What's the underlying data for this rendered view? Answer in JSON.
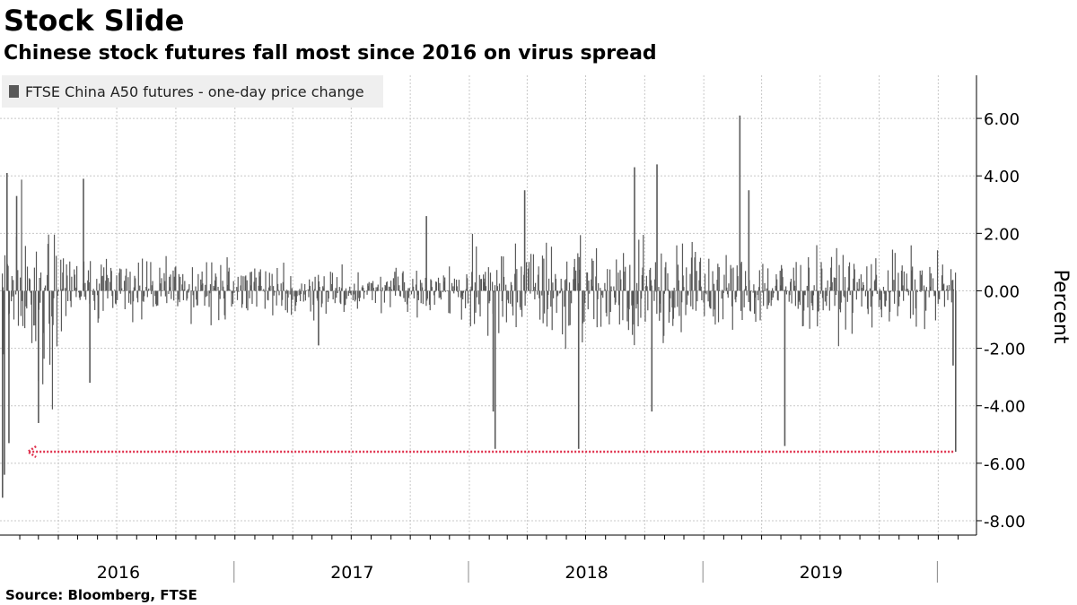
{
  "chart_data": {
    "type": "bar",
    "title": "Stock Slide",
    "subtitle": "Chinese stock futures fall most since 2016 on virus spread",
    "ylabel": "Percent",
    "ylim": [
      -8.5,
      7.5
    ],
    "yticks": [
      6,
      4,
      2,
      0,
      -2,
      -4,
      -6,
      -8
    ],
    "ytick_labels": [
      "6.00",
      "4.00",
      "2.00",
      "0.00",
      "-2.00",
      "-4.00",
      "-6.00",
      "-8.00"
    ],
    "x_range": [
      "2016-01-04",
      "2020-01-27"
    ],
    "x_categories": [
      "2016",
      "2017",
      "2018",
      "2019"
    ],
    "grid": true,
    "legend_position": "top-left",
    "series": [
      {
        "name": "FTSE China A50 futures - one-day price change",
        "color": "#595959",
        "highlighted_points": [
          {
            "date": "2016-01-04",
            "value": -7.2
          },
          {
            "date": "2016-01-07",
            "value": -6.4
          },
          {
            "date": "2016-01-11",
            "value": 4.1
          },
          {
            "date": "2016-01-14",
            "value": -5.3
          },
          {
            "date": "2016-01-26",
            "value": 3.3
          },
          {
            "date": "2016-02-29",
            "value": -4.6
          },
          {
            "date": "2016-05-09",
            "value": 3.9
          },
          {
            "date": "2016-05-19",
            "value": -3.2
          },
          {
            "date": "2017-05-10",
            "value": -1.9
          },
          {
            "date": "2017-10-25",
            "value": 2.6
          },
          {
            "date": "2018-02-06",
            "value": -4.2
          },
          {
            "date": "2018-02-09",
            "value": -5.5
          },
          {
            "date": "2018-03-27",
            "value": 3.5
          },
          {
            "date": "2018-06-19",
            "value": -5.5
          },
          {
            "date": "2018-09-14",
            "value": 4.3
          },
          {
            "date": "2018-10-11",
            "value": -4.2
          },
          {
            "date": "2018-10-19",
            "value": 4.4
          },
          {
            "date": "2019-02-25",
            "value": 6.1
          },
          {
            "date": "2019-05-06",
            "value": -5.4
          },
          {
            "date": "2019-03-11",
            "value": 3.5
          },
          {
            "date": "2020-01-23",
            "value": -2.6
          },
          {
            "date": "2020-01-27",
            "value": -5.6
          }
        ]
      }
    ],
    "annotations": [
      {
        "type": "reference-line",
        "value": -5.6,
        "from": "2016-01-07",
        "to": "2020-01-27",
        "color": "#e0334f",
        "style": "dotted-arrow"
      }
    ]
  },
  "source": "Source:  Bloomberg, FTSE"
}
